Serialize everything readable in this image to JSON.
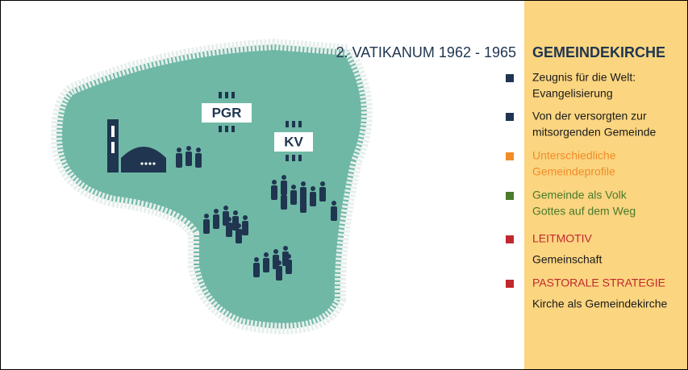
{
  "title": "2. VATIKANUM 1962 - 1965",
  "map": {
    "labels": [
      "PGR",
      "KV"
    ]
  },
  "sidebar": {
    "heading": "GEMEINDEKIRCHE",
    "items": [
      {
        "bullet_color": "#1f3550",
        "text_color": "#1a1a1a",
        "lines": [
          "Zeugnis für die Welt:",
          "Evangelisierung"
        ]
      },
      {
        "bullet_color": "#1f3550",
        "text_color": "#1a1a1a",
        "lines": [
          "Von der versorgten zur",
          "mitsorgenden Gemeinde"
        ]
      },
      {
        "bullet_color": "#f28c28",
        "text_color": "#f28c28",
        "lines": [
          "Unterschiedliche",
          "Gemeindeprofile"
        ]
      },
      {
        "bullet_color": "#4a7a2c",
        "text_color": "#4a7a2c",
        "lines": [
          "Gemeinde als Volk",
          "Gottes auf dem Weg"
        ]
      },
      {
        "bullet_color": "#c0282d",
        "text_color": "#c0282d",
        "lines": [
          "LEITMOTIV"
        ],
        "sub": "Gemeinschaft"
      },
      {
        "bullet_color": "#c0282d",
        "text_color": "#c0282d",
        "lines": [
          "PASTORALE STRATEGIE"
        ],
        "sub": "Kirche als Gemeindekirche"
      }
    ]
  }
}
